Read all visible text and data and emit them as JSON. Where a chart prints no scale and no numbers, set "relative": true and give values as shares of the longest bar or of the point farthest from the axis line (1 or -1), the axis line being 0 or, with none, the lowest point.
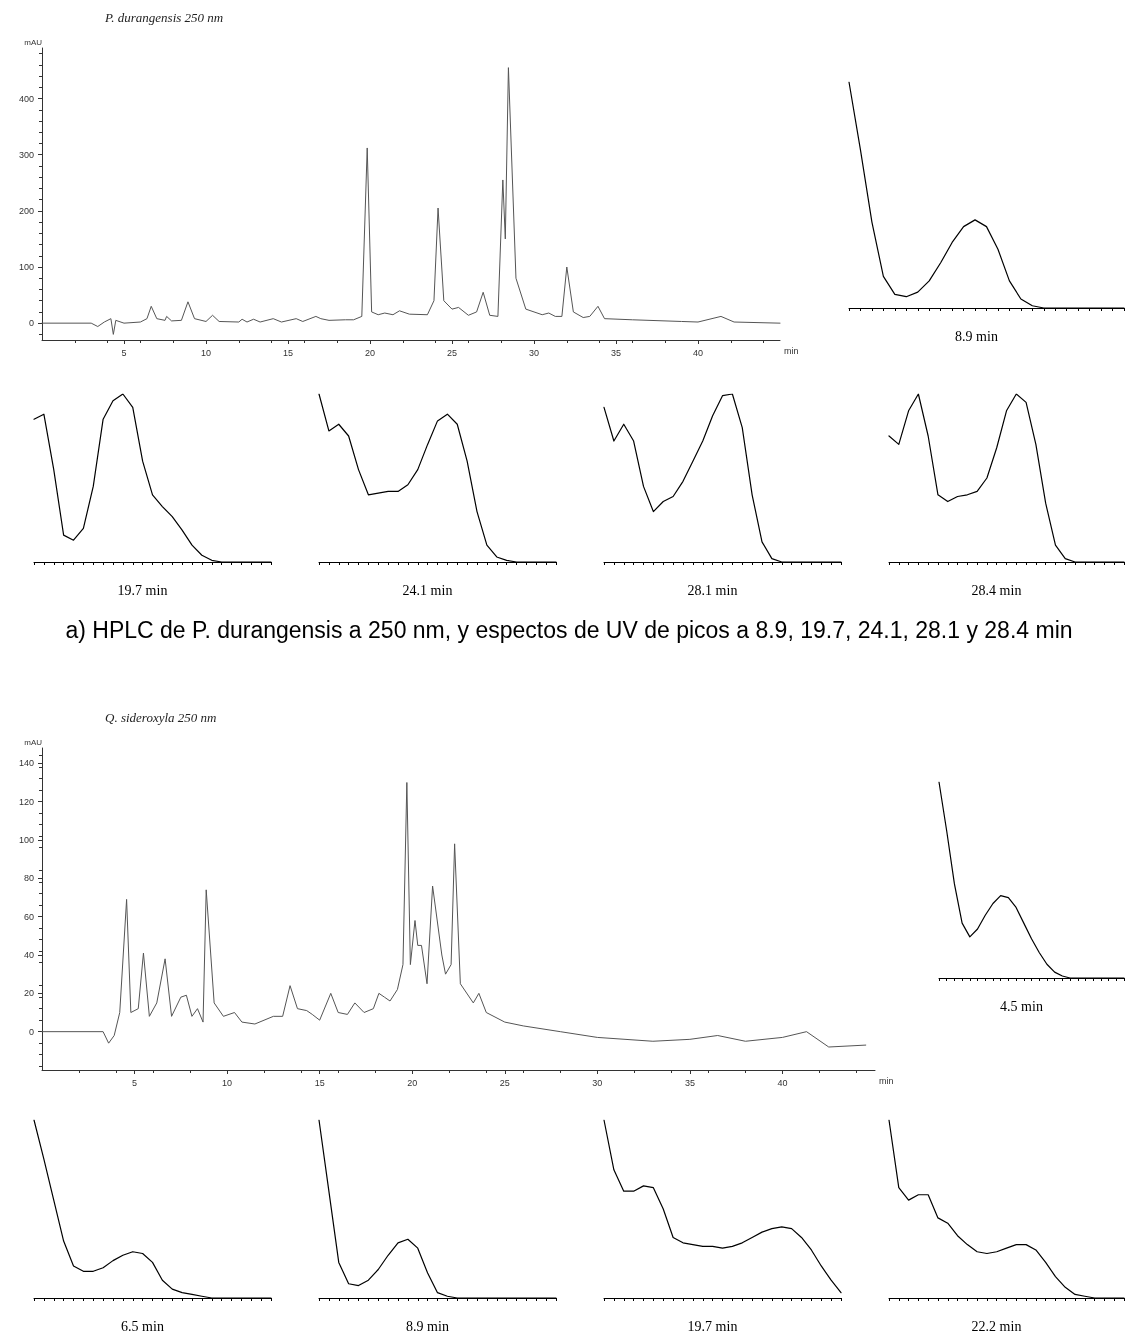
{
  "chart_data": [
    {
      "type": "line",
      "title": "P. durangensis 250 nm",
      "xlabel": "min",
      "ylabel": "mAU",
      "color": "#555555",
      "marker": "none",
      "grid": false,
      "annotations": [
        "a) HPLC de P. durangensis a 250 nm, y espectos de UV de picos a 8.9, 19.7, 24.1, 28.1 y 28.4 min"
      ],
      "xlim": [
        0,
        45
      ],
      "xticks": [
        5,
        10,
        15,
        20,
        25,
        30,
        35,
        40
      ],
      "ylim": [
        -30,
        490
      ],
      "yticks": [
        0,
        100,
        200,
        300,
        400
      ],
      "x": [
        0,
        3.0,
        3.4,
        3.8,
        4.2,
        4.35,
        4.5,
        5.0,
        6.0,
        6.4,
        6.66,
        7.0,
        7.5,
        7.6,
        7.9,
        8.5,
        8.9,
        9.3,
        10.0,
        10.4,
        10.8,
        12.0,
        12.2,
        12.5,
        12.9,
        13.3,
        14.1,
        14.6,
        15.5,
        15.9,
        16.7,
        17.0,
        17.5,
        18.5,
        19.0,
        19.5,
        19.83,
        20.1,
        20.5,
        20.9,
        21.4,
        21.8,
        22.4,
        23.5,
        23.9,
        24.15,
        24.5,
        25.0,
        25.4,
        26.0,
        26.5,
        26.9,
        27.3,
        27.8,
        28.1,
        28.25,
        28.44,
        28.9,
        29.5,
        30.5,
        30.9,
        31.3,
        31.7,
        32.0,
        32.4,
        33.0,
        33.4,
        33.9,
        34.3,
        36.0,
        39.0,
        40.0,
        41.4,
        42.2,
        45.0
      ],
      "values": [
        0,
        0,
        -6,
        2,
        8,
        -20,
        5,
        0,
        2,
        8,
        30,
        8,
        5,
        12,
        4,
        5,
        38,
        8,
        3,
        14,
        3,
        2,
        7,
        2,
        7,
        2,
        8,
        2,
        8,
        3,
        12,
        8,
        5,
        6,
        6,
        12,
        312,
        20,
        15,
        18,
        15,
        22,
        16,
        15,
        40,
        205,
        40,
        25,
        28,
        14,
        20,
        55,
        14,
        12,
        255,
        150,
        455,
        80,
        25,
        15,
        18,
        12,
        12,
        100,
        20,
        10,
        12,
        30,
        8,
        6,
        3,
        2,
        12,
        2,
        0
      ]
    },
    {
      "type": "line",
      "title": "8.9 min",
      "relative": true,
      "color": "#000000",
      "marker": "none",
      "categories": [
        null,
        null,
        null,
        null,
        null,
        null,
        null,
        null,
        null,
        null,
        null,
        null,
        null,
        null,
        null,
        null,
        null,
        null,
        null,
        null,
        null,
        null,
        null,
        null,
        null
      ],
      "values": [
        1.0,
        0.7,
        0.38,
        0.14,
        0.06,
        0.05,
        0.07,
        0.12,
        0.2,
        0.29,
        0.36,
        0.39,
        0.36,
        0.26,
        0.12,
        0.04,
        0.01,
        0,
        0,
        0,
        0,
        0,
        0,
        0,
        0
      ]
    },
    {
      "type": "line",
      "title": "19.7 min",
      "relative": true,
      "color": "#000000",
      "marker": "none",
      "categories": [
        null,
        null,
        null,
        null,
        null,
        null,
        null,
        null,
        null,
        null,
        null,
        null,
        null,
        null,
        null,
        null,
        null,
        null,
        null,
        null,
        null,
        null,
        null,
        null,
        null
      ],
      "values": [
        0.85,
        0.88,
        0.55,
        0.16,
        0.13,
        0.2,
        0.45,
        0.85,
        0.96,
        1.0,
        0.92,
        0.6,
        0.4,
        0.33,
        0.27,
        0.19,
        0.1,
        0.04,
        0.01,
        0,
        0,
        0,
        0,
        0,
        0
      ]
    },
    {
      "type": "line",
      "title": "24.1 min",
      "relative": true,
      "color": "#000000",
      "marker": "none",
      "categories": [
        null,
        null,
        null,
        null,
        null,
        null,
        null,
        null,
        null,
        null,
        null,
        null,
        null,
        null,
        null,
        null,
        null,
        null,
        null,
        null,
        null,
        null,
        null,
        null,
        null
      ],
      "values": [
        1.0,
        0.78,
        0.82,
        0.75,
        0.55,
        0.4,
        0.41,
        0.42,
        0.42,
        0.46,
        0.55,
        0.7,
        0.84,
        0.88,
        0.82,
        0.6,
        0.3,
        0.1,
        0.03,
        0.01,
        0,
        0,
        0,
        0,
        0
      ]
    },
    {
      "type": "line",
      "title": "28.1 min",
      "relative": true,
      "color": "#000000",
      "marker": "none",
      "categories": [
        null,
        null,
        null,
        null,
        null,
        null,
        null,
        null,
        null,
        null,
        null,
        null,
        null,
        null,
        null,
        null,
        null,
        null,
        null,
        null,
        null,
        null,
        null,
        null,
        null
      ],
      "values": [
        0.92,
        0.72,
        0.82,
        0.72,
        0.45,
        0.3,
        0.36,
        0.39,
        0.48,
        0.6,
        0.72,
        0.87,
        0.99,
        1.0,
        0.8,
        0.4,
        0.12,
        0.02,
        0,
        0,
        0,
        0,
        0,
        0,
        0
      ]
    },
    {
      "type": "line",
      "title": "28.4 min",
      "relative": true,
      "color": "#000000",
      "marker": "none",
      "categories": [
        null,
        null,
        null,
        null,
        null,
        null,
        null,
        null,
        null,
        null,
        null,
        null,
        null,
        null,
        null,
        null,
        null,
        null,
        null,
        null,
        null,
        null,
        null,
        null,
        null
      ],
      "values": [
        0.75,
        0.7,
        0.9,
        1.0,
        0.75,
        0.4,
        0.36,
        0.39,
        0.4,
        0.42,
        0.5,
        0.68,
        0.9,
        1.0,
        0.95,
        0.7,
        0.35,
        0.1,
        0.02,
        0,
        0,
        0,
        0,
        0,
        0
      ]
    },
    {
      "type": "line",
      "title": "Q. sideroxyla 250 nm",
      "xlabel": "min",
      "ylabel": "mAU",
      "color": "#555555",
      "marker": "none",
      "grid": false,
      "xlim": [
        0,
        45
      ],
      "xticks": [
        5,
        10,
        15,
        20,
        25,
        30,
        35,
        40
      ],
      "ylim": [
        -20,
        148
      ],
      "yticks": [
        0,
        20,
        40,
        60,
        80,
        100,
        120,
        140
      ],
      "x": [
        0,
        3.3,
        3.6,
        3.9,
        4.2,
        4.57,
        4.8,
        5.2,
        5.48,
        5.8,
        6.2,
        6.65,
        7.0,
        7.5,
        7.8,
        8.1,
        8.4,
        8.7,
        8.87,
        9.3,
        9.8,
        10.4,
        10.8,
        11.5,
        12.5,
        13.0,
        13.4,
        13.8,
        14.3,
        14.6,
        15.0,
        15.6,
        16.0,
        16.5,
        16.9,
        17.4,
        17.9,
        18.2,
        18.5,
        18.8,
        19.2,
        19.5,
        19.71,
        19.9,
        20.15,
        20.3,
        20.5,
        20.8,
        21.1,
        21.6,
        21.8,
        22.1,
        22.29,
        22.6,
        23.3,
        23.6,
        24.0,
        25.0,
        26.0,
        28.0,
        30.0,
        33.0,
        35.0,
        36.5,
        38.0,
        40.0,
        41.3,
        42.5,
        44.5
      ],
      "values": [
        0,
        0,
        -6,
        -2,
        10,
        69,
        10,
        12,
        41,
        8,
        15,
        38,
        8,
        18,
        19,
        8,
        12,
        5,
        74,
        15,
        8,
        10,
        5,
        4,
        8,
        8,
        24,
        12,
        11,
        9,
        6,
        20,
        10,
        9,
        15,
        10,
        12,
        20,
        18,
        16,
        22,
        35,
        130,
        35,
        58,
        45,
        45,
        25,
        76,
        40,
        30,
        35,
        98,
        25,
        15,
        20,
        10,
        5,
        3,
        0,
        -3,
        -5,
        -4,
        -2,
        -5,
        -3,
        0,
        -8,
        -7
      ]
    },
    {
      "type": "line",
      "title": "4.5 min",
      "relative": true,
      "color": "#000000",
      "marker": "none",
      "categories": [
        null,
        null,
        null,
        null,
        null,
        null,
        null,
        null,
        null,
        null,
        null,
        null,
        null,
        null,
        null,
        null,
        null,
        null,
        null,
        null,
        null,
        null,
        null,
        null,
        null
      ],
      "values": [
        1.0,
        0.75,
        0.48,
        0.28,
        0.21,
        0.25,
        0.32,
        0.38,
        0.42,
        0.41,
        0.36,
        0.28,
        0.2,
        0.13,
        0.07,
        0.03,
        0.01,
        0,
        0,
        0,
        0,
        0,
        0,
        0,
        0
      ]
    },
    {
      "type": "line",
      "title": "6.5 min",
      "relative": true,
      "color": "#000000",
      "marker": "none",
      "categories": [
        null,
        null,
        null,
        null,
        null,
        null,
        null,
        null,
        null,
        null,
        null,
        null,
        null,
        null,
        null,
        null,
        null,
        null,
        null,
        null,
        null,
        null,
        null,
        null,
        null
      ],
      "values": [
        1.0,
        0.78,
        0.55,
        0.32,
        0.18,
        0.15,
        0.15,
        0.17,
        0.21,
        0.24,
        0.26,
        0.25,
        0.2,
        0.1,
        0.05,
        0.03,
        0.02,
        0.01,
        0,
        0,
        0,
        0,
        0,
        0,
        0
      ]
    },
    {
      "type": "line",
      "title": "8.9 min",
      "relative": true,
      "color": "#000000",
      "marker": "none",
      "categories": [
        null,
        null,
        null,
        null,
        null,
        null,
        null,
        null,
        null,
        null,
        null,
        null,
        null,
        null,
        null,
        null,
        null,
        null,
        null,
        null,
        null,
        null,
        null,
        null,
        null
      ],
      "values": [
        1.0,
        0.6,
        0.2,
        0.08,
        0.07,
        0.1,
        0.16,
        0.24,
        0.31,
        0.33,
        0.28,
        0.14,
        0.03,
        0.01,
        0,
        0,
        0,
        0,
        0,
        0,
        0,
        0,
        0,
        0,
        0
      ]
    },
    {
      "type": "line",
      "title": "19.7 min",
      "relative": true,
      "color": "#000000",
      "marker": "none",
      "categories": [
        null,
        null,
        null,
        null,
        null,
        null,
        null,
        null,
        null,
        null,
        null,
        null,
        null,
        null,
        null,
        null,
        null,
        null,
        null,
        null,
        null,
        null,
        null,
        null,
        null
      ],
      "values": [
        1.0,
        0.72,
        0.6,
        0.6,
        0.63,
        0.62,
        0.5,
        0.34,
        0.31,
        0.3,
        0.29,
        0.29,
        0.28,
        0.29,
        0.31,
        0.34,
        0.37,
        0.39,
        0.4,
        0.39,
        0.34,
        0.27,
        0.18,
        0.1,
        0.03
      ]
    },
    {
      "type": "line",
      "title": "22.2 min",
      "relative": true,
      "color": "#000000",
      "marker": "none",
      "categories": [
        null,
        null,
        null,
        null,
        null,
        null,
        null,
        null,
        null,
        null,
        null,
        null,
        null,
        null,
        null,
        null,
        null,
        null,
        null,
        null,
        null,
        null,
        null,
        null,
        null
      ],
      "values": [
        1.0,
        0.62,
        0.55,
        0.58,
        0.58,
        0.45,
        0.42,
        0.35,
        0.3,
        0.26,
        0.25,
        0.26,
        0.28,
        0.3,
        0.3,
        0.27,
        0.2,
        0.12,
        0.06,
        0.02,
        0.01,
        0,
        0,
        0,
        0
      ]
    }
  ]
}
